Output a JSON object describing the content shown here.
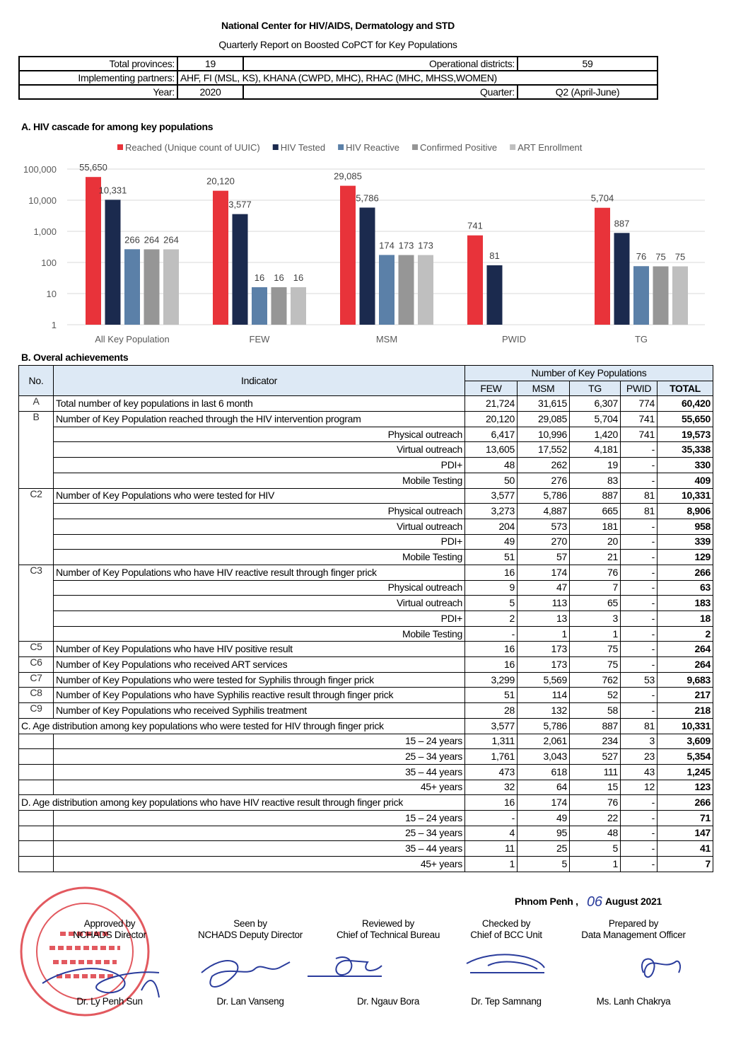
{
  "header": {
    "org": "National Center for HIV/AIDS, Dermatology and STD",
    "title": "Quarterly Report on Boosted CoPCT for Key Populations"
  },
  "info": {
    "provinces_label": "Total provinces:",
    "provinces": "19",
    "districts_label": "Operational districts:",
    "districts": "59",
    "partners_label": "Implementing partners:",
    "partners": "AHF, FI (MSL, KS), KHANA (CWPD, MHC), RHAC (MHC, MHSS,WOMEN)",
    "year_label": "Year:",
    "year": "2020",
    "quarter_label": "Quarter:",
    "quarter": "Q2 (April-June)"
  },
  "section_a": "A. HIV cascade for among key populations",
  "chart_data": {
    "type": "bar",
    "log_scale": true,
    "grid": true,
    "legend": "top",
    "categories": [
      "All Key Population",
      "FEW",
      "MSM",
      "PWID",
      "TG"
    ],
    "ylim": [
      1,
      100000
    ],
    "yticks": [
      1,
      10,
      100,
      {
        "value": 1000,
        "label": "1,000"
      },
      {
        "value": 10000,
        "label": "10,000"
      },
      {
        "value": 100000,
        "label": "100,000"
      }
    ],
    "series": [
      {
        "name": "Reached (Unique count of UUIC)",
        "color": "#e8333a",
        "values": [
          55650,
          20120,
          29085,
          741,
          5704
        ],
        "value_labels": [
          "55,650",
          "20,120",
          "29,085",
          "741",
          "5,704"
        ]
      },
      {
        "name": "HIV Tested",
        "color": "#1b2a4e",
        "values": [
          10331,
          3577,
          5786,
          81,
          887
        ],
        "value_labels": [
          "10,331",
          "3,577",
          "5,786",
          "81",
          "887"
        ]
      },
      {
        "name": "HIV Reactive",
        "color": "#5b80a8",
        "values": [
          266,
          16,
          174,
          null,
          76
        ],
        "value_labels": [
          "266",
          "16",
          "174",
          null,
          "76"
        ]
      },
      {
        "name": "Confirmed Positive",
        "color": "#969696",
        "values": [
          264,
          16,
          173,
          null,
          75
        ],
        "value_labels": [
          "264",
          "16",
          "173",
          null,
          "75"
        ]
      },
      {
        "name": "ART Enrollment",
        "color": "#bfbfbf",
        "values": [
          264,
          16,
          173,
          null,
          75
        ],
        "value_labels": [
          "264",
          "16",
          "173",
          null,
          "75"
        ]
      }
    ]
  },
  "section_b": "B. Overal achievements",
  "table": {
    "no_header": "No.",
    "indicator_header": "Indicator",
    "group_header": "Number of Key Populations",
    "columns": [
      "FEW",
      "MSM",
      "TG",
      "PWID",
      "TOTAL"
    ],
    "rows": [
      {
        "no": "A",
        "label": "Total number of key populations in last 6 month",
        "values": [
          "21,724",
          "31,615",
          "6,307",
          "774",
          "60,420"
        ]
      },
      {
        "no": "B",
        "label": "Number of Key Population reached through the HIV intervention program",
        "values": [
          "20,120",
          "29,085",
          "5,704",
          "741",
          "55,650"
        ]
      },
      {
        "label": "Physical outreach",
        "values": [
          "6,417",
          "10,996",
          "1,420",
          "741",
          "19,573"
        ]
      },
      {
        "label": "Virtual outreach",
        "values": [
          "13,605",
          "17,552",
          "4,181",
          "-",
          "35,338"
        ]
      },
      {
        "label": "PDI+",
        "values": [
          "48",
          "262",
          "19",
          "-",
          "330"
        ]
      },
      {
        "label": "Mobile Testing",
        "values": [
          "50",
          "276",
          "83",
          "-",
          "409"
        ]
      },
      {
        "no": "C2",
        "label": "Number of Key Populations who were tested for HIV",
        "values": [
          "3,577",
          "5,786",
          "887",
          "81",
          "10,331"
        ]
      },
      {
        "label": "Physical outreach",
        "values": [
          "3,273",
          "4,887",
          "665",
          "81",
          "8,906"
        ]
      },
      {
        "label": "Virtual outreach",
        "values": [
          "204",
          "573",
          "181",
          "-",
          "958"
        ]
      },
      {
        "label": "PDI+",
        "values": [
          "49",
          "270",
          "20",
          "-",
          "339"
        ]
      },
      {
        "label": "Mobile Testing",
        "values": [
          "51",
          "57",
          "21",
          "-",
          "129"
        ]
      },
      {
        "no": "C3",
        "label": "Number of Key Populations who have HIV reactive result through finger prick",
        "values": [
          "16",
          "174",
          "76",
          "-",
          "266"
        ]
      },
      {
        "label": "Physical outreach",
        "values": [
          "9",
          "47",
          "7",
          "-",
          "63"
        ]
      },
      {
        "label": "Virtual outreach",
        "values": [
          "5",
          "113",
          "65",
          "-",
          "183"
        ]
      },
      {
        "label": "PDI+",
        "values": [
          "2",
          "13",
          "3",
          "-",
          "18"
        ]
      },
      {
        "label": "Mobile Testing",
        "values": [
          "-",
          "1",
          "1",
          "-",
          "2"
        ]
      },
      {
        "no": "C5",
        "label": "Number of Key Populations who have HIV positive result",
        "values": [
          "16",
          "173",
          "75",
          "-",
          "264"
        ]
      },
      {
        "no": "C6",
        "label": "Number of Key Populations who received ART services",
        "values": [
          "16",
          "173",
          "75",
          "-",
          "264"
        ]
      },
      {
        "no": "C7",
        "label": "Number of Key Populations who were tested for Syphilis through finger prick",
        "values": [
          "3,299",
          "5,569",
          "762",
          "53",
          "9,683"
        ]
      },
      {
        "no": "C8",
        "label": "Number of Key Populations who have Syphilis reactive result through finger prick",
        "values": [
          "51",
          "114",
          "52",
          "-",
          "217"
        ]
      },
      {
        "no": "C9",
        "label": "Number of Key Populations who received Syphilis treatment",
        "values": [
          "28",
          "132",
          "58",
          "-",
          "218"
        ]
      },
      {
        "title": "C. Age distribution among key populations who were tested for HIV through finger prick",
        "values": [
          "3,577",
          "5,786",
          "887",
          "81",
          "10,331"
        ]
      },
      {
        "label": "15 – 24 years",
        "values": [
          "1,311",
          "2,061",
          "234",
          "3",
          "3,609"
        ]
      },
      {
        "label": "25 – 34 years",
        "values": [
          "1,761",
          "3,043",
          "527",
          "23",
          "5,354"
        ]
      },
      {
        "label": "35 – 44 years",
        "values": [
          "473",
          "618",
          "111",
          "43",
          "1,245"
        ]
      },
      {
        "label": "45+ years",
        "values": [
          "32",
          "64",
          "15",
          "12",
          "123"
        ]
      },
      {
        "title": "D. Age distribution among key populations who have HIV reactive result through finger prick",
        "values": [
          "16",
          "174",
          "76",
          "-",
          "266"
        ]
      },
      {
        "label": "15 – 24 years",
        "values": [
          "-",
          "49",
          "22",
          "-",
          "71"
        ]
      },
      {
        "label": "25 – 34 years",
        "values": [
          "4",
          "95",
          "48",
          "-",
          "147"
        ]
      },
      {
        "label": "35 – 44 years",
        "values": [
          "11",
          "25",
          "5",
          "-",
          "41"
        ]
      },
      {
        "label": "45+ years",
        "values": [
          "1",
          "5",
          "1",
          "-",
          "7"
        ]
      }
    ]
  },
  "footer": {
    "place": "Phnom Penh ,",
    "day": "06",
    "month_year": "August 2021",
    "signers": [
      {
        "action": "Approved by",
        "role": "NCHADS Director",
        "name": "Dr. Ly Penh Sun"
      },
      {
        "action": "Seen by",
        "role": "NCHADS Deputy Director",
        "name": "Dr. Lan Vanseng"
      },
      {
        "action": "Reviewed by",
        "role": "Chief of Technical Bureau",
        "name": "Dr. Ngauv Bora"
      },
      {
        "action": "Checked by",
        "role": "Chief of BCC Unit",
        "name": "Dr. Tep Samnang"
      },
      {
        "action": "Prepared by",
        "role": "Data Management Officer",
        "name": "Ms. Lanh Chakrya"
      }
    ]
  }
}
